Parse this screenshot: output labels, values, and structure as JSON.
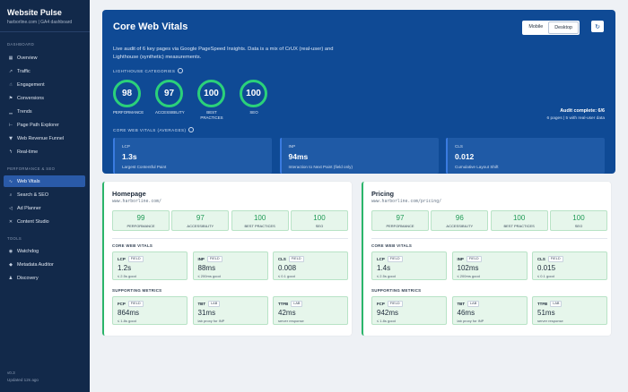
{
  "sidebar": {
    "brand_title": "Website Pulse",
    "brand_sub": "harborline.com | GA4 dashboard",
    "section_dashboard": "DASHBOARD",
    "section_perf": "PERFORMANCE & SEO",
    "section_tools": "TOOLS",
    "items": [
      {
        "label": "Overview",
        "icon": "grid-icon"
      },
      {
        "label": "Traffic",
        "icon": "line-chart-icon"
      },
      {
        "label": "Engagement",
        "icon": "cursor-icon"
      },
      {
        "label": "Conversions",
        "icon": "flag-icon"
      },
      {
        "label": "Trends",
        "icon": "trend-icon"
      },
      {
        "label": "Page Path Explorer",
        "icon": "path-icon"
      },
      {
        "label": "Web Revenue Funnel",
        "icon": "funnel-icon"
      },
      {
        "label": "Real-time",
        "icon": "bolt-icon"
      },
      {
        "label": "Web Vitals",
        "icon": "pulse-icon"
      },
      {
        "label": "Search & SEO",
        "icon": "search-icon"
      },
      {
        "label": "Ad Planner",
        "icon": "megaphone-icon"
      },
      {
        "label": "Content Studio",
        "icon": "tools-icon"
      },
      {
        "label": "Watchdog",
        "icon": "watch-icon"
      },
      {
        "label": "Metadata Auditor",
        "icon": "tag-icon"
      },
      {
        "label": "Discovery",
        "icon": "person-icon"
      }
    ],
    "version": "v0.3",
    "updated": "Updated 12s ago"
  },
  "hero": {
    "title": "Core Web Vitals",
    "description": "Live audit of 6 key pages via Google PageSpeed Insights. Data is a mix of CrUX (real-user) and Lighthouse (synthetic) measurements.",
    "mobile_label": "Mobile",
    "desktop_label": "Desktop",
    "lighthouse_label": "LIGHTHOUSE CATEGORIES",
    "gauges": [
      {
        "value": "98",
        "label": "PERFORMANCE"
      },
      {
        "value": "97",
        "label": "ACCESSIBILITY"
      },
      {
        "value": "100",
        "label": "BEST PRACTICES"
      },
      {
        "value": "100",
        "label": "SEO"
      }
    ],
    "audit_main": "Audit complete: 6/6",
    "audit_sub": "6 pages | 5 with real-user data",
    "cwv_label": "CORE WEB VITALS (AVERAGES)",
    "vitals": [
      {
        "abbr": "LCP",
        "value": "1.3s",
        "name": "Largest Contentful Paint"
      },
      {
        "abbr": "INP",
        "value": "94ms",
        "name": "Interaction to Next Paint (field only)"
      },
      {
        "abbr": "CLS",
        "value": "0.012",
        "name": "Cumulative Layout Shift"
      }
    ]
  },
  "cards": [
    {
      "title": "Homepage",
      "url": "www.harborline.com/",
      "scores": [
        {
          "value": "99",
          "label": "PERFORMANCE"
        },
        {
          "value": "97",
          "label": "ACCESSIBILITY"
        },
        {
          "value": "100",
          "label": "BEST PRACTICES"
        },
        {
          "value": "100",
          "label": "SEO"
        }
      ],
      "cwv_label": "CORE WEB VITALS",
      "cwv": [
        {
          "abbr": "LCP",
          "tag": "FIELD",
          "value": "1.2s",
          "note": "≤ 2.5s good"
        },
        {
          "abbr": "INP",
          "tag": "FIELD",
          "value": "88ms",
          "note": "≤ 200ms good"
        },
        {
          "abbr": "CLS",
          "tag": "FIELD",
          "value": "0.008",
          "note": "≤ 0.1 good"
        }
      ],
      "support_label": "SUPPORTING METRICS",
      "support": [
        {
          "abbr": "FCP",
          "tag": "FIELD",
          "value": "864ms",
          "note": "≤ 1.8s good"
        },
        {
          "abbr": "TBT",
          "tag": "LAB",
          "value": "31ms",
          "note": "lab proxy for INP"
        },
        {
          "abbr": "TTFB",
          "tag": "LAB",
          "value": "42ms",
          "note": "server response"
        }
      ]
    },
    {
      "title": "Pricing",
      "url": "www.harborline.com/pricing/",
      "scores": [
        {
          "value": "97",
          "label": "PERFORMANCE"
        },
        {
          "value": "96",
          "label": "ACCESSIBILITY"
        },
        {
          "value": "100",
          "label": "BEST PRACTICES"
        },
        {
          "value": "100",
          "label": "SEO"
        }
      ],
      "cwv_label": "CORE WEB VITALS",
      "cwv": [
        {
          "abbr": "LCP",
          "tag": "FIELD",
          "value": "1.4s",
          "note": "≤ 2.5s good"
        },
        {
          "abbr": "INP",
          "tag": "FIELD",
          "value": "102ms",
          "note": "≤ 200ms good"
        },
        {
          "abbr": "CLS",
          "tag": "FIELD",
          "value": "0.015",
          "note": "≤ 0.1 good"
        }
      ],
      "support_label": "SUPPORTING METRICS",
      "support": [
        {
          "abbr": "FCP",
          "tag": "FIELD",
          "value": "942ms",
          "note": "≤ 1.8s good"
        },
        {
          "abbr": "TBT",
          "tag": "LAB",
          "value": "46ms",
          "note": "lab proxy for INP"
        },
        {
          "abbr": "TTFB",
          "tag": "LAB",
          "value": "51ms",
          "note": "server response"
        }
      ]
    }
  ]
}
